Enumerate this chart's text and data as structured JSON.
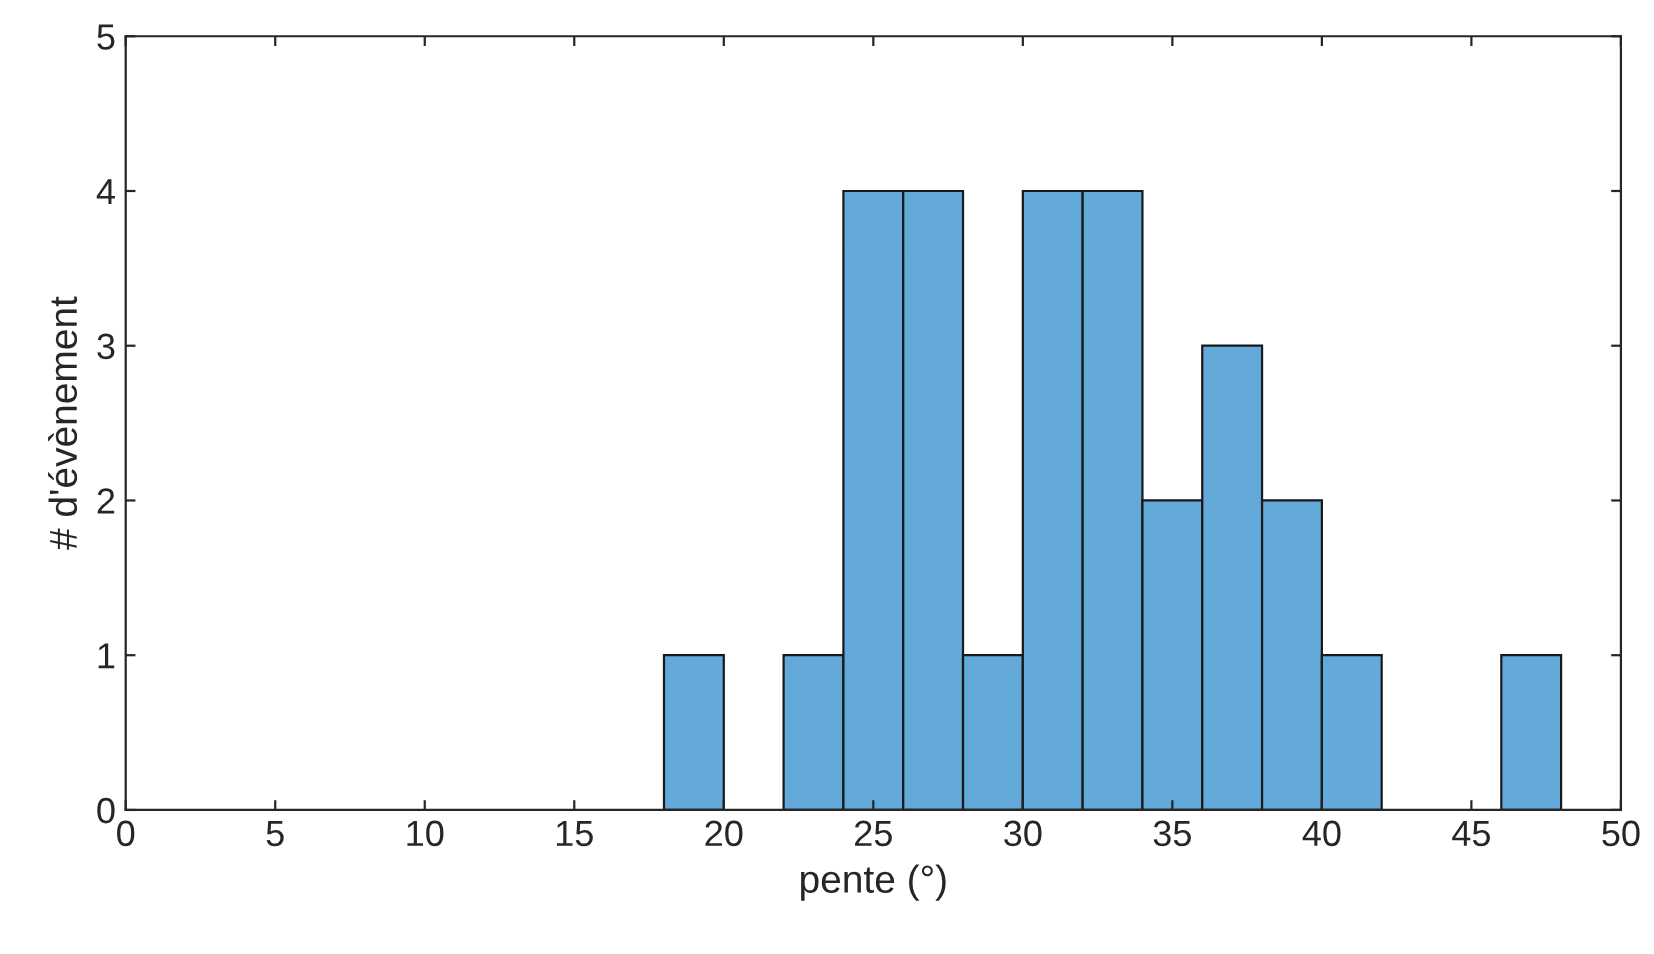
{
  "chart_data": {
    "type": "histogram",
    "xlabel": "pente (°)",
    "ylabel": "# d'évènement",
    "bins": [
      18,
      20,
      22,
      24,
      26,
      28,
      30,
      32,
      34,
      36,
      38,
      40,
      42,
      44,
      46,
      48
    ],
    "values": [
      1,
      0,
      1,
      4,
      4,
      1,
      4,
      4,
      2,
      3,
      2,
      1,
      0,
      0,
      1
    ],
    "color": "#63a9d9",
    "xlim": [
      0,
      50
    ],
    "xticks": [
      0,
      5,
      10,
      15,
      20,
      25,
      30,
      35,
      40,
      45,
      50
    ],
    "ylim": [
      0,
      5
    ],
    "yticks": [
      0,
      1,
      2,
      3,
      4,
      5
    ],
    "grid": false
  }
}
